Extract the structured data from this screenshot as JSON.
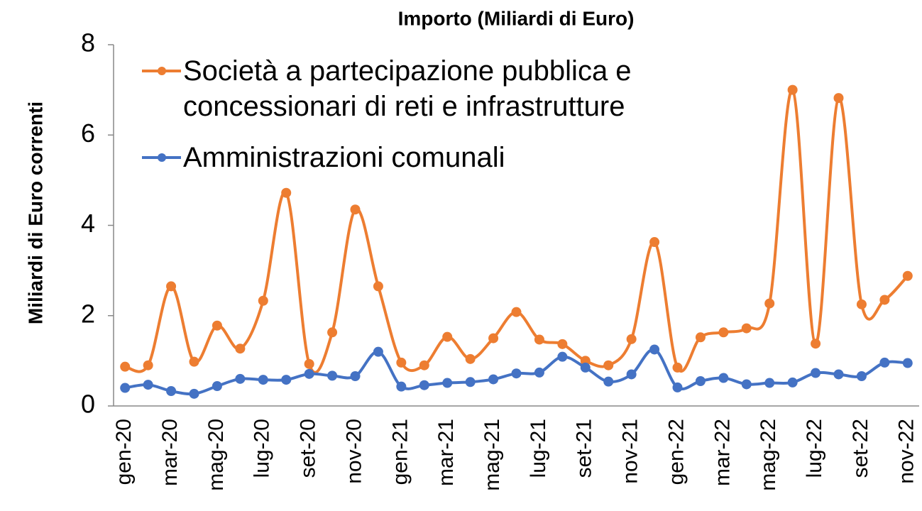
{
  "chart_data": {
    "type": "line",
    "title": "Importo (Miliardi di Euro)",
    "y_label": "Miliardi di Euro correnti",
    "categories": [
      "gen-20",
      null,
      "mar-20",
      null,
      "mag-20",
      null,
      "lug-20",
      null,
      "set-20",
      null,
      "nov-20",
      null,
      "gen-21",
      null,
      "mar-21",
      null,
      "mag-21",
      null,
      "lug-21",
      null,
      "set-21",
      null,
      "nov-21",
      null,
      "gen-22",
      null,
      "mar-22",
      null,
      "mag-22",
      null,
      "lug-22",
      null,
      "set-22",
      null,
      "nov-22"
    ],
    "series": [
      {
        "name": "Società a partecipazione pubblica e concessionari di reti e infrastrutture",
        "color": "#ed7d31",
        "values": [
          0.87,
          0.9,
          2.65,
          0.98,
          1.78,
          1.27,
          2.33,
          4.72,
          0.93,
          1.63,
          4.35,
          2.65,
          0.96,
          0.9,
          1.53,
          1.04,
          1.5,
          2.08,
          1.47,
          1.37,
          1.0,
          0.9,
          1.48,
          3.63,
          0.85,
          1.52,
          1.63,
          1.72,
          2.27,
          7.0,
          1.38,
          6.82,
          2.25,
          2.35,
          2.88
        ]
      },
      {
        "name": "Amministrazioni comunali",
        "color": "#4472c4",
        "values": [
          0.4,
          0.47,
          0.33,
          0.27,
          0.44,
          0.6,
          0.58,
          0.58,
          0.71,
          0.67,
          0.66,
          1.2,
          0.43,
          0.46,
          0.51,
          0.53,
          0.59,
          0.72,
          0.74,
          1.09,
          0.85,
          0.54,
          0.7,
          1.25,
          0.41,
          0.55,
          0.62,
          0.48,
          0.51,
          0.52,
          0.73,
          0.7,
          0.66,
          0.96,
          0.95
        ]
      }
    ],
    "ylim": [
      0,
      8
    ],
    "yticks": [
      0,
      2,
      4,
      6,
      8
    ],
    "smooth": true,
    "markers": true,
    "grid": false
  }
}
